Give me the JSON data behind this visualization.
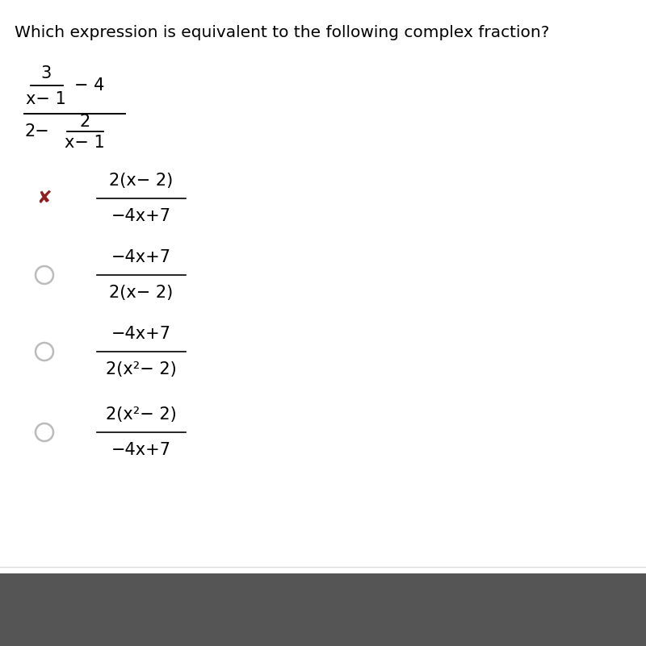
{
  "title": "Which expression is equivalent to the following complex fraction?",
  "title_fontsize": 14.5,
  "bg_color": "#ffffff",
  "text_color": "#000000",
  "wrong_marker_color": "#8B2020",
  "circle_color": "#bbbbbb",
  "bottom_bar_color": "#555555",
  "bottom_line_color": "#dddddd",
  "choices": [
    {
      "numerator": "2(x− 2)",
      "denominator": "−4x+7",
      "marker": "x",
      "selected": true
    },
    {
      "numerator": "−4x+7",
      "denominator": "2(x− 2)",
      "marker": "circle",
      "selected": false
    },
    {
      "numerator": "−4x+7",
      "denominator": "2(x²− 2)",
      "marker": "circle",
      "selected": false
    },
    {
      "numerator": "2(x²− 2)",
      "denominator": "−4x+7",
      "marker": "circle",
      "selected": false
    }
  ]
}
